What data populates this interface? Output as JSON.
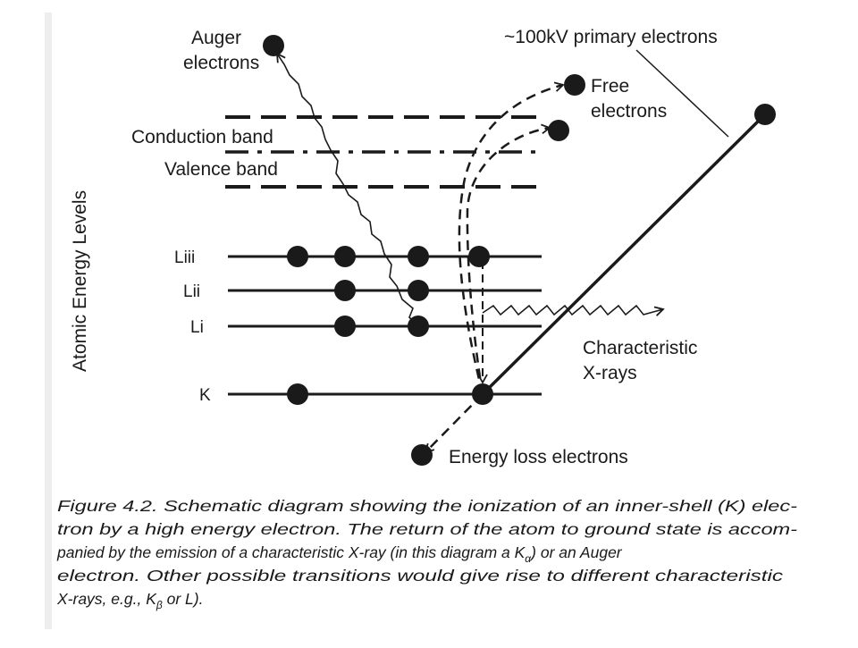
{
  "labels": {
    "auger_line1": "Auger",
    "auger_line2": "electrons",
    "primary": "~100kV primary electrons",
    "free_line1": "Free",
    "free_line2": "electrons",
    "conduction": "Conduction band",
    "valence": "Valence band",
    "axis": "Atomic Energy Levels",
    "liii": "Liii",
    "lii": "Lii",
    "li": "Li",
    "k": "K",
    "xray_line1": "Characteristic",
    "xray_line2": "X-rays",
    "energy_loss": "Energy loss electrons"
  },
  "caption": {
    "line1": "Figure 4.2.  Schematic diagram showing the ionization of an inner-shell (K) elec-",
    "line2": "tron by a high energy electron. The return of the atom to ground state is accom-",
    "line3_a": "panied by the emission of a characteristic X-ray (in this diagram a K",
    "line3_sub": "α",
    "line3_b": ") or an Auger",
    "line4": "electron. Other possible transitions would give rise to different characteristic",
    "line5_a": "X-rays, e.g., K",
    "line5_sub": "β",
    "line5_b": " or L)."
  },
  "colors": {
    "ink": "#1a1a1a",
    "background": "#ffffff",
    "margin_shadow": "#e8e8e8"
  }
}
